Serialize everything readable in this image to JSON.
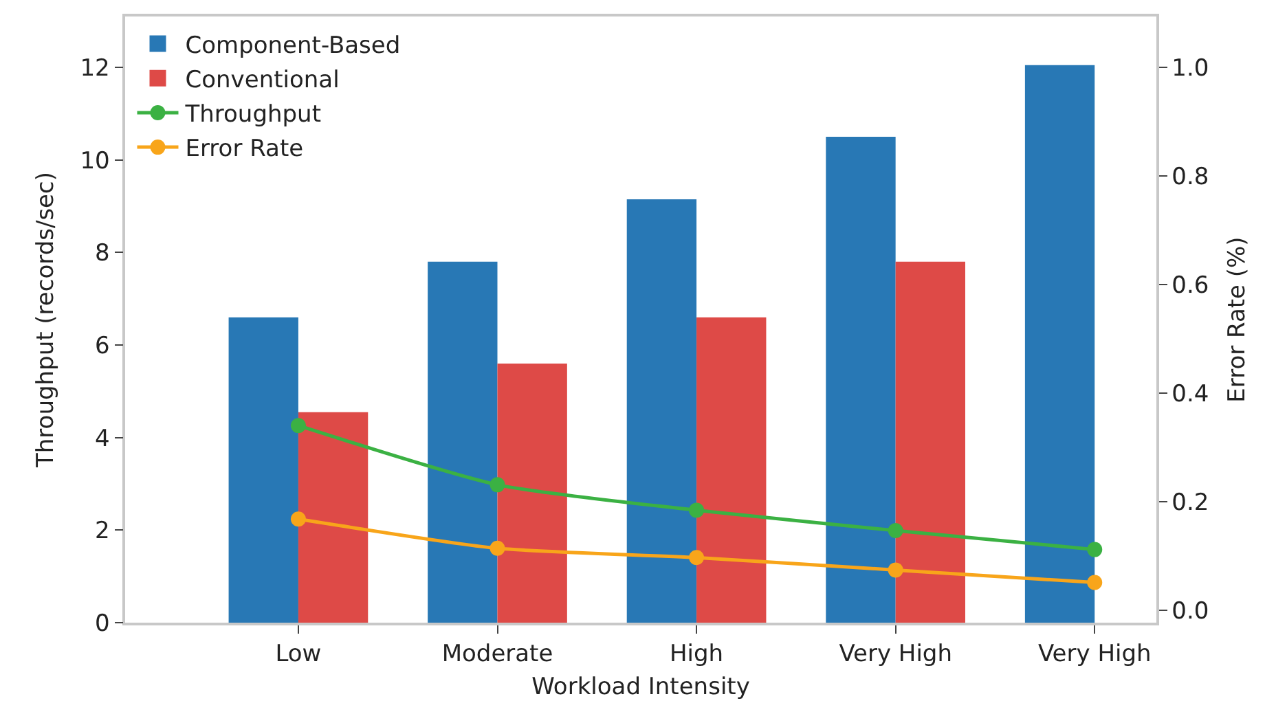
{
  "chart_data": {
    "type": "bar",
    "xlabel": "Workload Intensity",
    "ylabel": "Throughput (records/sec)",
    "y2label": "Error Rate (%)",
    "categories": [
      "Low",
      "Moderate",
      "High",
      "Very High",
      "Very High"
    ],
    "series": [
      {
        "name": "Component-Based",
        "color": "#2878b5",
        "values": [
          6.6,
          7.8,
          9.15,
          10.5,
          12.05
        ]
      },
      {
        "name": "Conventional",
        "color": "#de4a47",
        "values": [
          4.55,
          5.6,
          6.6,
          7.8,
          null
        ]
      },
      {
        "name": "Throughput",
        "type": "line",
        "color": "#3bb143",
        "marker": "circle",
        "line_style": "solid",
        "values": [
          4.26,
          2.98,
          2.43,
          1.99,
          1.58
        ]
      },
      {
        "name": "Error Rate",
        "type": "line",
        "axis": "y2",
        "color": "#f8a51a",
        "marker": "circle",
        "line_style": "solid",
        "values": [
          0.168,
          0.114,
          0.097,
          0.074,
          0.051
        ]
      }
    ],
    "ylim": [
      0,
      13.1
    ],
    "yticks": [
      0,
      2,
      4,
      6,
      8,
      10,
      12
    ],
    "y2lim": [
      -0.023,
      1.094
    ],
    "y2ticks": [
      {
        "value": 0,
        "label": "0.0"
      },
      {
        "value": 0.2,
        "label": "0.2"
      },
      {
        "value": 0.4,
        "label": "0.4"
      },
      {
        "value": 0.6,
        "label": "0.6"
      },
      {
        "value": 0.8,
        "label": "0.8"
      },
      {
        "value": 1,
        "label": "1.0"
      }
    ],
    "legend": "top left"
  }
}
